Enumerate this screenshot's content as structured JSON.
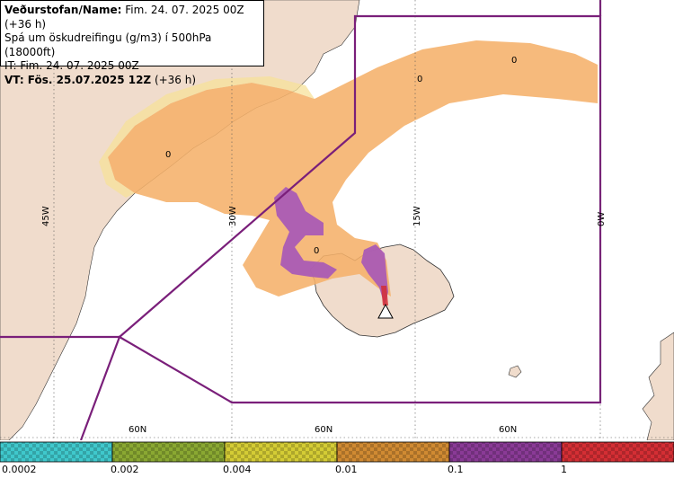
{
  "info": {
    "line1_label": "Veðurstofan/Name:",
    "line1_value": " Fim. 24. 07. 2025 00Z (+36 h)",
    "line2": "Spá um öskudreifingu (g/m3) í 500hPa (18000ft)",
    "line3": "IT: Fim. 24. 07. 2025 00Z",
    "line4_label": "VT: Fös. 25.07.2025 12Z",
    "line4_value": " (+36 h)"
  },
  "grid_labels": {
    "lon_45w": "45W",
    "lon_30w": "30W",
    "lon_15w": "15W",
    "lon_0w": "0W",
    "lat_60n_a": "60N",
    "lat_60n_b": "60N",
    "lat_60n_c": "60N"
  },
  "contour_labels": [
    "0",
    "0",
    "0",
    "0"
  ],
  "legend": {
    "labels": [
      "0.0002",
      "0.002",
      "0.004",
      "0.01",
      "0.1",
      "1"
    ],
    "colors": [
      "#3fc8cc",
      "#8aa832",
      "#d4cc35",
      "#d08a32",
      "#8a3a96",
      "#d42e34"
    ]
  },
  "colors": {
    "land": "#f0dccc",
    "ash_low": "#f5b06a",
    "ash_high": "#a656b8",
    "fir_line": "#7a1f7a"
  }
}
